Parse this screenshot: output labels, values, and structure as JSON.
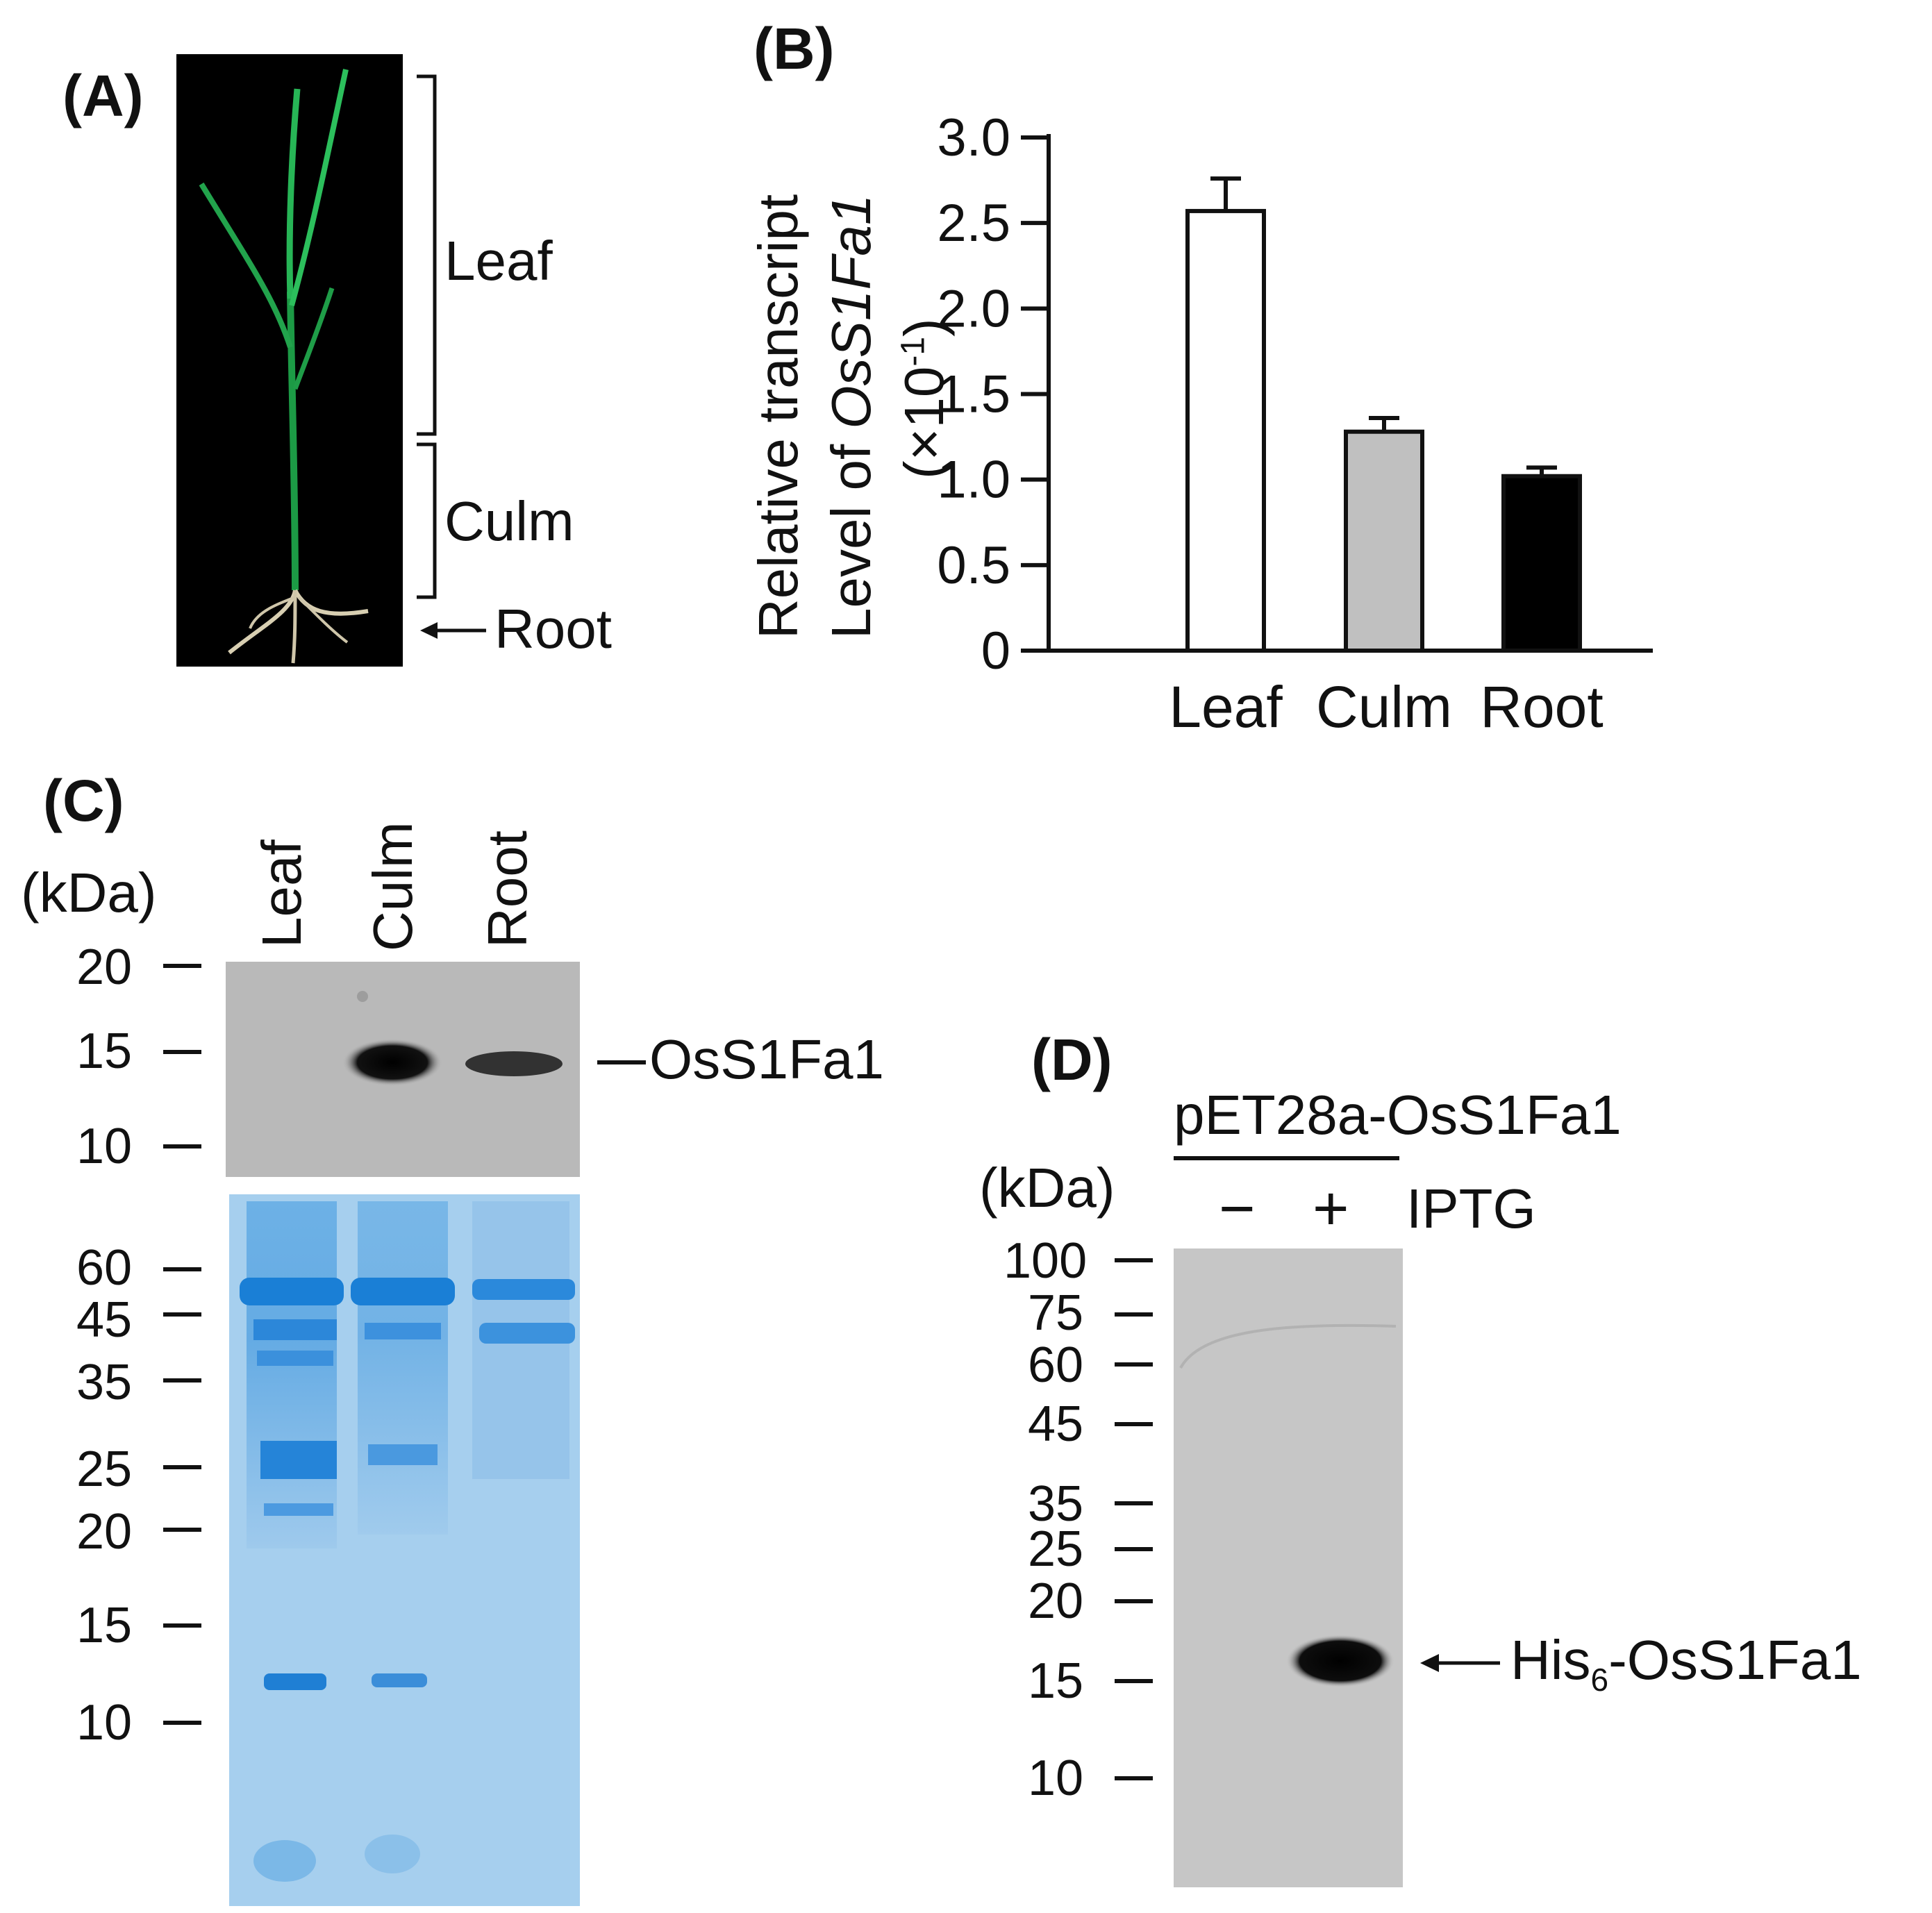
{
  "panels": {
    "a": {
      "label": "(A)",
      "regions": [
        "Leaf",
        "Culm",
        "Root"
      ],
      "colors": {
        "photo_bg": "#000000",
        "leaf": "#1fa74a",
        "root": "#d9d2b8"
      }
    },
    "b": {
      "label": "(B)",
      "ylabel_line1": "Relative  transcript",
      "ylabel_line2_prefix": "Level of ",
      "ylabel_line2_gene": "OsS1Fa1",
      "ylabel_line3": "(×10",
      "ylabel_line3_exp": "-1",
      "ylabel_line3_close": ")"
    },
    "c": {
      "label": "(C)",
      "unit": "(kDa)",
      "lanes": [
        "Leaf",
        "Culm",
        "Root"
      ],
      "blot_markers": [
        "20",
        "15",
        "10"
      ],
      "band_label": "OsS1Fa1",
      "gel_markers": [
        "60",
        "45",
        "35",
        "25",
        "20",
        "15",
        "10"
      ],
      "colors": {
        "blot": "#b8b8b8",
        "gel": "#9ec9ea",
        "gel_band": "#1f82d6"
      }
    },
    "d": {
      "label": "(D)",
      "construct": "pET28a-OsS1Fa1",
      "unit": "(kDa)",
      "minus": "−",
      "plus": "+",
      "treatment": "IPTG",
      "markers": [
        "100",
        "75",
        "60",
        "45",
        "35",
        "25",
        "20",
        "15",
        "10"
      ],
      "band_label_prefix": "His",
      "band_label_sub": "6",
      "band_label_suffix": "-OsS1Fa1",
      "colors": {
        "blot": "#c4c4c4"
      }
    }
  },
  "chart_data": {
    "type": "bar",
    "categories": [
      "Leaf",
      "Culm",
      "Root"
    ],
    "values": [
      2.57,
      1.28,
      1.02
    ],
    "errors": [
      0.19,
      0.08,
      0.05
    ],
    "yticks": [
      0,
      0.5,
      1.0,
      1.5,
      2.0,
      2.5,
      3.0
    ],
    "ytick_labels": [
      "0",
      "0.5",
      "1.0",
      "1.5",
      "2.0",
      "2.5",
      "3.0"
    ],
    "ylim": [
      0,
      3.0
    ],
    "colors": [
      "#ffffff",
      "#c0c0c0",
      "#000000"
    ]
  }
}
